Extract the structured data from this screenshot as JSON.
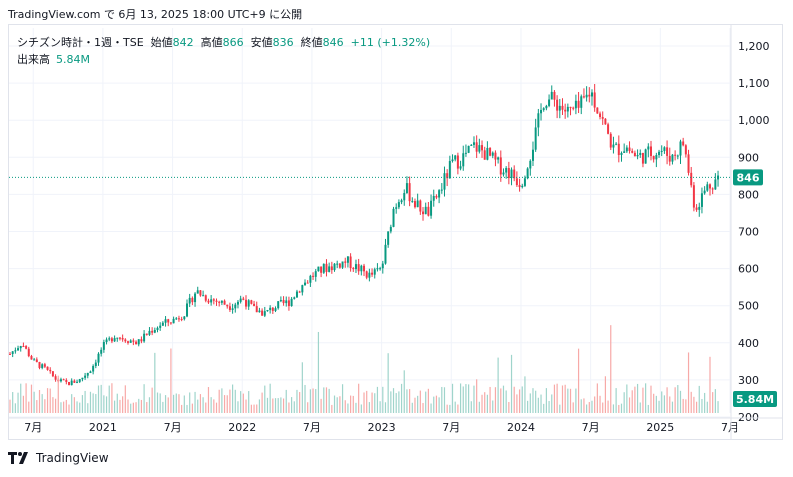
{
  "header": {
    "attribution": "TradingView.com で 6月 13, 2025 18:00 UTC+9 に公開"
  },
  "legend": {
    "symbol": "シチズン時計・1週・TSE",
    "open_label": "始値",
    "open": "842",
    "high_label": "高値",
    "high": "866",
    "low_label": "安値",
    "low": "836",
    "close_label": "終値",
    "close": "846",
    "change": "+11 (+1.32%)",
    "volume_label": "出来高",
    "volume": "5.84M"
  },
  "footer": {
    "brand": "TradingView",
    "logo": "tv-logo-icon"
  },
  "colors": {
    "up": "#089981",
    "down": "#f23645",
    "up_vol": "#9fd4cb",
    "down_vol": "#f7a9a7",
    "grid": "#f0f3fa",
    "axis_text": "#131722"
  },
  "chart_data": {
    "type": "candlestick",
    "ylim": [
      200,
      1200
    ],
    "y_ticks": [
      "1,200",
      "1,100",
      "1,000",
      "900",
      "800",
      "700",
      "600",
      "500",
      "400",
      "300",
      "200"
    ],
    "y_tick_values": [
      1200,
      1100,
      1000,
      900,
      800,
      700,
      600,
      500,
      400,
      300,
      200
    ],
    "x_range": [
      "2020-05",
      "2025-07"
    ],
    "x_ticks": [
      {
        "label": "7月",
        "date": "2020-07"
      },
      {
        "label": "2021",
        "date": "2021-01"
      },
      {
        "label": "7月",
        "date": "2021-07"
      },
      {
        "label": "2022",
        "date": "2022-01"
      },
      {
        "label": "7月",
        "date": "2022-07"
      },
      {
        "label": "2023",
        "date": "2023-01"
      },
      {
        "label": "7月",
        "date": "2023-07"
      },
      {
        "label": "2024",
        "date": "2024-01"
      },
      {
        "label": "7月",
        "date": "2024-07"
      },
      {
        "label": "2025",
        "date": "2025-01"
      },
      {
        "label": "7月",
        "date": "2025-07"
      }
    ],
    "last_price": 846,
    "last_price_label": "846",
    "last_volume_label": "5.84M",
    "close_path": [
      [
        "2020-05",
        370
      ],
      [
        "2020-06",
        400
      ],
      [
        "2020-07",
        350
      ],
      [
        "2020-08",
        330
      ],
      [
        "2020-09",
        300
      ],
      [
        "2020-10",
        290
      ],
      [
        "2020-11",
        300
      ],
      [
        "2020-12",
        330
      ],
      [
        "2021-01",
        390
      ],
      [
        "2021-02",
        420
      ],
      [
        "2021-03",
        410
      ],
      [
        "2021-04",
        400
      ],
      [
        "2021-05",
        430
      ],
      [
        "2021-06",
        450
      ],
      [
        "2021-07",
        460
      ],
      [
        "2021-08",
        480
      ],
      [
        "2021-09",
        540
      ],
      [
        "2021-10",
        520
      ],
      [
        "2021-11",
        510
      ],
      [
        "2021-12",
        500
      ],
      [
        "2022-01",
        520
      ],
      [
        "2022-02",
        490
      ],
      [
        "2022-03",
        480
      ],
      [
        "2022-04",
        500
      ],
      [
        "2022-05",
        510
      ],
      [
        "2022-06",
        550
      ],
      [
        "2022-07",
        580
      ],
      [
        "2022-08",
        600
      ],
      [
        "2022-09",
        610
      ],
      [
        "2022-10",
        620
      ],
      [
        "2022-11",
        600
      ],
      [
        "2022-12",
        580
      ],
      [
        "2023-01",
        600
      ],
      [
        "2023-02",
        760
      ],
      [
        "2023-03",
        820
      ],
      [
        "2023-04",
        770
      ],
      [
        "2023-05",
        750
      ],
      [
        "2023-06",
        810
      ],
      [
        "2023-07",
        880
      ],
      [
        "2023-08",
        900
      ],
      [
        "2023-09",
        930
      ],
      [
        "2023-10",
        910
      ],
      [
        "2023-11",
        880
      ],
      [
        "2023-12",
        860
      ],
      [
        "2024-01",
        830
      ],
      [
        "2024-02",
        930
      ],
      [
        "2024-03",
        1060
      ],
      [
        "2024-04",
        1050
      ],
      [
        "2024-05",
        1020
      ],
      [
        "2024-06",
        1030
      ],
      [
        "2024-07",
        1080
      ],
      [
        "2024-08",
        1000
      ],
      [
        "2024-09",
        920
      ],
      [
        "2024-10",
        930
      ],
      [
        "2024-11",
        900
      ],
      [
        "2024-12",
        910
      ],
      [
        "2025-01",
        920
      ],
      [
        "2025-02",
        900
      ],
      [
        "2025-03",
        940
      ],
      [
        "2025-04",
        760
      ],
      [
        "2025-05",
        820
      ],
      [
        "2025-06",
        846
      ]
    ]
  }
}
